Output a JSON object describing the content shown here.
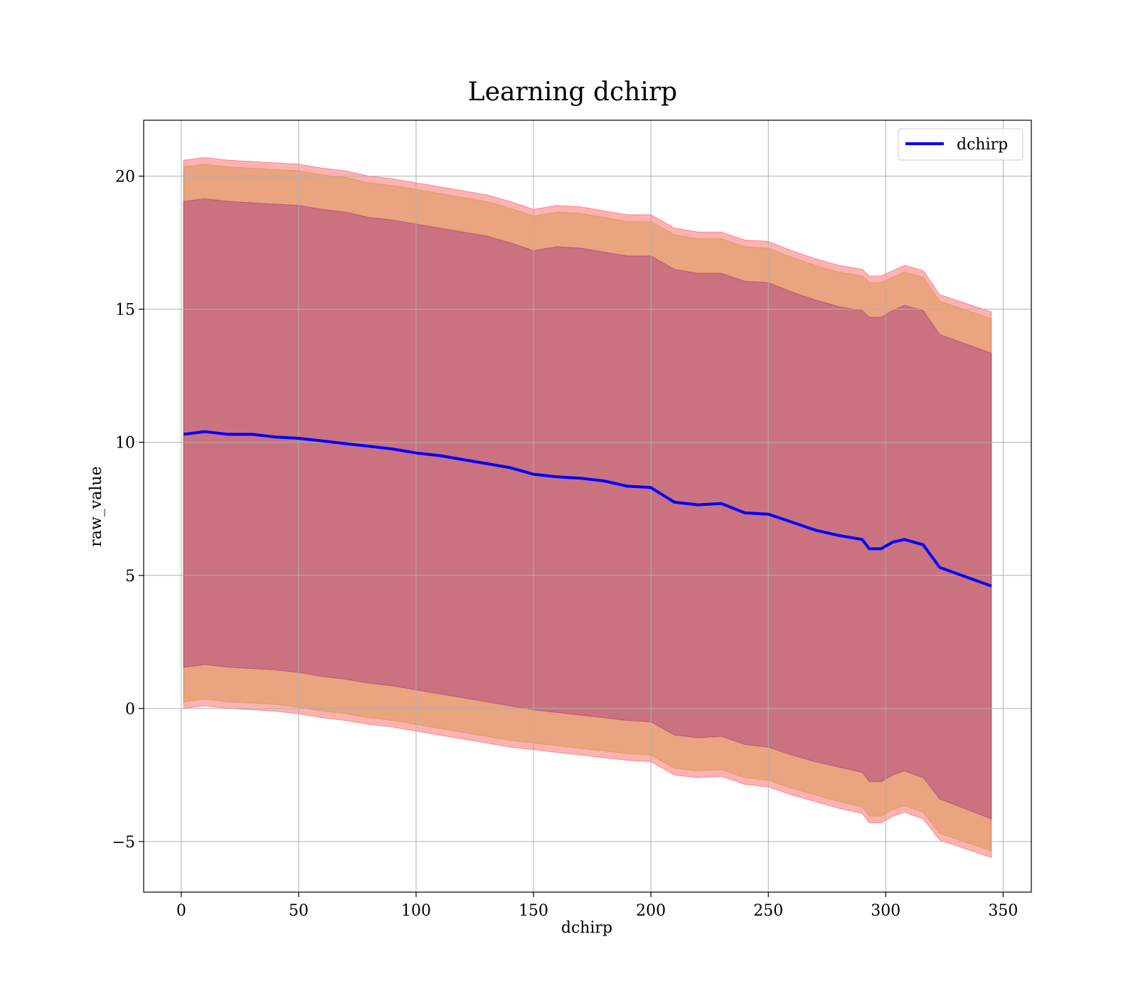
{
  "chart_data": {
    "type": "area",
    "title": "Learning dchirp",
    "xlabel": "dchirp",
    "ylabel": "raw_value",
    "xlim": [
      -16,
      362
    ],
    "ylim": [
      -6.9,
      22.1
    ],
    "xticks": [
      0,
      50,
      100,
      150,
      200,
      250,
      300,
      350
    ],
    "xtick_labels": [
      "0",
      "50",
      "100",
      "150",
      "200",
      "250",
      "300",
      "350"
    ],
    "yticks": [
      -5,
      0,
      5,
      10,
      15,
      20
    ],
    "ytick_labels": [
      "−5",
      "0",
      "5",
      "10",
      "15",
      "20"
    ],
    "grid": true,
    "legend": {
      "position": "top-right",
      "entries": [
        {
          "label": "dchirp",
          "color": "#0000ff"
        }
      ]
    },
    "colors": {
      "mean_line": "#0000ff",
      "band_outer": "#ff0000",
      "band_middle": "#b8860b",
      "band_inner": "#800080"
    },
    "x": [
      1,
      10,
      20,
      30,
      40,
      50,
      60,
      70,
      80,
      90,
      100,
      110,
      120,
      130,
      140,
      150,
      160,
      170,
      180,
      190,
      200,
      210,
      220,
      230,
      240,
      250,
      260,
      270,
      280,
      290,
      293,
      298,
      303,
      308,
      316,
      323,
      345
    ],
    "series": [
      {
        "name": "dchirp",
        "values": [
          10.3,
          10.4,
          10.3,
          10.3,
          10.2,
          10.15,
          10.05,
          9.95,
          9.85,
          9.75,
          9.6,
          9.5,
          9.35,
          9.2,
          9.05,
          8.8,
          8.7,
          8.65,
          8.55,
          8.35,
          8.3,
          7.75,
          7.65,
          7.7,
          7.35,
          7.3,
          7.0,
          6.7,
          6.5,
          6.35,
          6.0,
          6.0,
          6.25,
          6.35,
          6.15,
          5.3,
          4.6
        ]
      }
    ],
    "bands": [
      {
        "level": "outer",
        "upper": [
          20.6,
          20.7,
          20.6,
          20.55,
          20.5,
          20.45,
          20.3,
          20.2,
          20.0,
          19.9,
          19.75,
          19.6,
          19.45,
          19.3,
          19.05,
          18.75,
          18.9,
          18.85,
          18.7,
          18.55,
          18.55,
          18.05,
          17.9,
          17.9,
          17.6,
          17.55,
          17.2,
          16.9,
          16.65,
          16.5,
          16.25,
          16.25,
          16.45,
          16.65,
          16.45,
          15.55,
          14.9
        ],
        "lower": [
          0.0,
          0.1,
          0.0,
          -0.05,
          -0.1,
          -0.2,
          -0.35,
          -0.45,
          -0.6,
          -0.7,
          -0.85,
          -1.0,
          -1.15,
          -1.3,
          -1.45,
          -1.55,
          -1.65,
          -1.75,
          -1.85,
          -1.95,
          -2.0,
          -2.5,
          -2.6,
          -2.55,
          -2.85,
          -2.95,
          -3.25,
          -3.5,
          -3.75,
          -3.95,
          -4.3,
          -4.3,
          -4.05,
          -3.9,
          -4.15,
          -4.95,
          -5.6
        ]
      },
      {
        "level": "middle",
        "upper": [
          20.35,
          20.45,
          20.35,
          20.3,
          20.25,
          20.2,
          20.05,
          19.95,
          19.75,
          19.65,
          19.5,
          19.35,
          19.2,
          19.05,
          18.8,
          18.5,
          18.65,
          18.6,
          18.45,
          18.3,
          18.3,
          17.8,
          17.65,
          17.65,
          17.35,
          17.3,
          16.95,
          16.65,
          16.4,
          16.25,
          16.0,
          16.0,
          16.2,
          16.4,
          16.2,
          15.3,
          14.65
        ],
        "lower": [
          0.25,
          0.35,
          0.25,
          0.2,
          0.15,
          0.05,
          -0.1,
          -0.2,
          -0.35,
          -0.45,
          -0.6,
          -0.75,
          -0.9,
          -1.05,
          -1.2,
          -1.3,
          -1.4,
          -1.5,
          -1.6,
          -1.7,
          -1.75,
          -2.25,
          -2.35,
          -2.3,
          -2.6,
          -2.7,
          -3.0,
          -3.25,
          -3.5,
          -3.7,
          -4.05,
          -4.05,
          -3.8,
          -3.65,
          -3.9,
          -4.7,
          -5.35
        ]
      },
      {
        "level": "inner",
        "upper": [
          19.05,
          19.15,
          19.05,
          19.0,
          18.95,
          18.9,
          18.75,
          18.65,
          18.45,
          18.35,
          18.2,
          18.05,
          17.9,
          17.75,
          17.5,
          17.2,
          17.35,
          17.3,
          17.15,
          17.0,
          17.0,
          16.5,
          16.35,
          16.35,
          16.05,
          16.0,
          15.65,
          15.35,
          15.1,
          14.95,
          14.7,
          14.7,
          14.95,
          15.15,
          14.95,
          14.05,
          13.35
        ],
        "lower": [
          1.55,
          1.65,
          1.55,
          1.5,
          1.45,
          1.35,
          1.2,
          1.1,
          0.95,
          0.85,
          0.7,
          0.55,
          0.4,
          0.25,
          0.1,
          -0.05,
          -0.15,
          -0.25,
          -0.35,
          -0.45,
          -0.5,
          -1.0,
          -1.1,
          -1.05,
          -1.35,
          -1.45,
          -1.75,
          -2.0,
          -2.2,
          -2.4,
          -2.75,
          -2.75,
          -2.5,
          -2.35,
          -2.6,
          -3.4,
          -4.15
        ]
      }
    ]
  }
}
